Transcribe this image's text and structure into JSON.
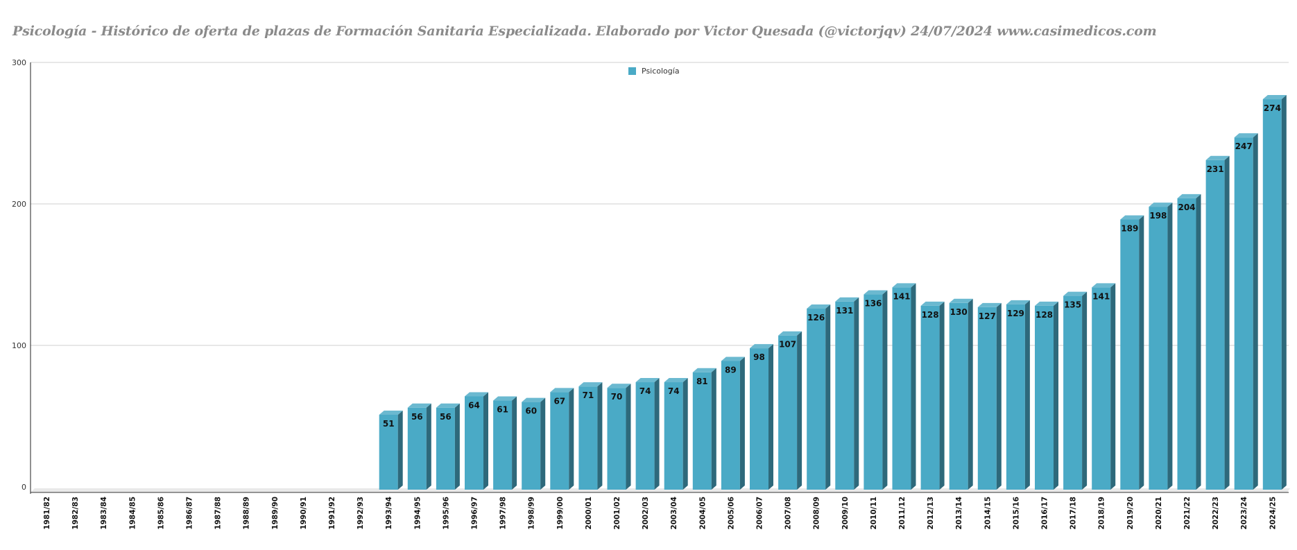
{
  "chart_data": {
    "type": "bar",
    "title": "Psicología - Histórico de oferta de plazas de Formación Sanitaria Especializada. Elaborado por Victor Quesada (@victorjqv)  24/07/2024 www.casimedicos.com",
    "xlabel": "",
    "ylabel": "",
    "ylim": [
      0,
      300
    ],
    "yticks": [
      0,
      100,
      200,
      300
    ],
    "grid": true,
    "legend_position": "top-center",
    "categories": [
      "1981/82",
      "1982/83",
      "1983/84",
      "1984/85",
      "1985/86",
      "1986/87",
      "1987/88",
      "1988/89",
      "1989/90",
      "1990/91",
      "1991/92",
      "1992/93",
      "1993/94",
      "1994/95",
      "1995/96",
      "1996/97",
      "1997/98",
      "1998/99",
      "1999/00",
      "2000/01",
      "2001/02",
      "2002/03",
      "2003/04",
      "2004/05",
      "2005/06",
      "2006/07",
      "2007/08",
      "2008/09",
      "2009/10",
      "2010/11",
      "2011/12",
      "2012/13",
      "2013/14",
      "2014/15",
      "2015/16",
      "2016/17",
      "2017/18",
      "2018/19",
      "2019/20",
      "2020/21",
      "2021/22",
      "2022/23",
      "2023/24",
      "2024/25"
    ],
    "series": [
      {
        "name": "Psicología",
        "color": "#4aaac6",
        "values": [
          null,
          null,
          null,
          null,
          null,
          null,
          null,
          null,
          null,
          null,
          null,
          null,
          51,
          56,
          56,
          64,
          61,
          60,
          67,
          71,
          70,
          74,
          74,
          81,
          89,
          98,
          107,
          126,
          131,
          136,
          141,
          128,
          130,
          127,
          129,
          128,
          135,
          141,
          189,
          198,
          204,
          231,
          247,
          274
        ]
      }
    ]
  }
}
